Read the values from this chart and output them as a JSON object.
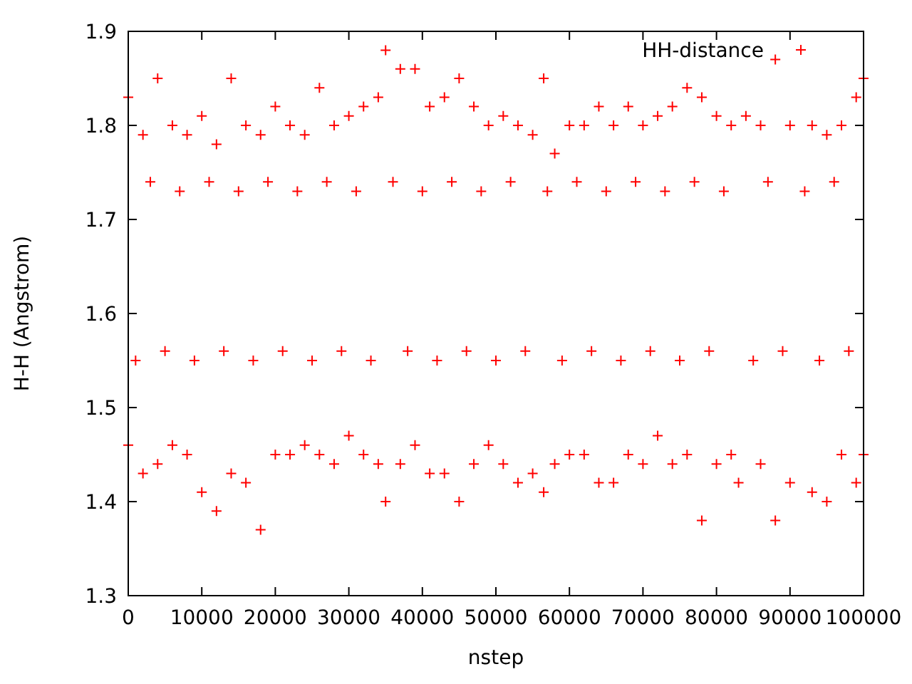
{
  "chart_data": {
    "type": "scatter",
    "xlabel": "nstep",
    "ylabel": "H-H (Angstrom)",
    "xlim": [
      0,
      100000
    ],
    "ylim": [
      1.3,
      1.9
    ],
    "xticks": [
      0,
      10000,
      20000,
      30000,
      40000,
      50000,
      60000,
      70000,
      80000,
      90000,
      100000
    ],
    "yticks": [
      1.3,
      1.4,
      1.5,
      1.6,
      1.7,
      1.8,
      1.9
    ],
    "grid": false,
    "legend": "top right",
    "marker": "cross",
    "series": [
      {
        "name": "HH-distance",
        "color": "#ff0000",
        "x": [
          0,
          0,
          1000,
          2000,
          2000,
          3000,
          4000,
          4000,
          5000,
          6000,
          6000,
          7000,
          8000,
          8000,
          9000,
          10000,
          10000,
          11000,
          12000,
          12000,
          13000,
          14000,
          14000,
          15000,
          16000,
          16000,
          17000,
          18000,
          18000,
          19000,
          20000,
          20000,
          21000,
          22000,
          22000,
          23000,
          24000,
          24000,
          25000,
          26000,
          26000,
          27000,
          28000,
          28000,
          29000,
          30000,
          30000,
          31000,
          32000,
          32000,
          33000,
          34000,
          34000,
          35000,
          35000,
          36000,
          37000,
          37000,
          38000,
          39000,
          39000,
          40000,
          41000,
          41000,
          42000,
          43000,
          43000,
          44000,
          45000,
          45000,
          46000,
          47000,
          47000,
          48000,
          49000,
          49000,
          50000,
          51000,
          51000,
          52000,
          53000,
          53000,
          54000,
          55000,
          55000,
          56500,
          56500,
          57000,
          58000,
          58000,
          59000,
          60000,
          60000,
          61000,
          62000,
          62000,
          63000,
          64000,
          64000,
          65000,
          66000,
          66000,
          67000,
          68000,
          68000,
          69000,
          70000,
          70000,
          71000,
          72000,
          72000,
          73000,
          74000,
          74000,
          75000,
          76000,
          76000,
          77000,
          78000,
          78000,
          79000,
          80000,
          80000,
          81000,
          82000,
          82000,
          83000,
          84000,
          85000,
          86000,
          86000,
          87000,
          88000,
          88000,
          89000,
          90000,
          90000,
          92000,
          93000,
          93000,
          94000,
          95000,
          95000,
          96000,
          97000,
          97000,
          98000,
          99000,
          99000,
          100000,
          100000
        ],
        "values": [
          1.83,
          1.46,
          1.55,
          1.79,
          1.43,
          1.74,
          1.85,
          1.44,
          1.56,
          1.8,
          1.46,
          1.73,
          1.79,
          1.45,
          1.55,
          1.81,
          1.41,
          1.74,
          1.78,
          1.39,
          1.56,
          1.85,
          1.43,
          1.73,
          1.8,
          1.42,
          1.55,
          1.79,
          1.37,
          1.74,
          1.82,
          1.45,
          1.56,
          1.8,
          1.45,
          1.73,
          1.79,
          1.46,
          1.55,
          1.84,
          1.45,
          1.74,
          1.8,
          1.44,
          1.56,
          1.81,
          1.47,
          1.73,
          1.82,
          1.45,
          1.55,
          1.83,
          1.44,
          1.88,
          1.4,
          1.74,
          1.86,
          1.44,
          1.56,
          1.86,
          1.46,
          1.73,
          1.82,
          1.43,
          1.55,
          1.83,
          1.43,
          1.74,
          1.85,
          1.4,
          1.56,
          1.82,
          1.44,
          1.73,
          1.8,
          1.46,
          1.55,
          1.81,
          1.44,
          1.74,
          1.8,
          1.42,
          1.56,
          1.79,
          1.43,
          1.85,
          1.41,
          1.73,
          1.77,
          1.44,
          1.55,
          1.8,
          1.45,
          1.74,
          1.8,
          1.45,
          1.56,
          1.82,
          1.42,
          1.73,
          1.8,
          1.42,
          1.55,
          1.82,
          1.45,
          1.74,
          1.8,
          1.44,
          1.56,
          1.81,
          1.47,
          1.73,
          1.82,
          1.44,
          1.55,
          1.84,
          1.45,
          1.74,
          1.83,
          1.38,
          1.56,
          1.81,
          1.44,
          1.73,
          1.8,
          1.45,
          1.42,
          1.81,
          1.55,
          1.8,
          1.44,
          1.74,
          1.87,
          1.38,
          1.56,
          1.8,
          1.42,
          1.73,
          1.8,
          1.41,
          1.55,
          1.79,
          1.4,
          1.74,
          1.8,
          1.45,
          1.56,
          1.83,
          1.42,
          1.85,
          1.45
        ]
      }
    ]
  }
}
